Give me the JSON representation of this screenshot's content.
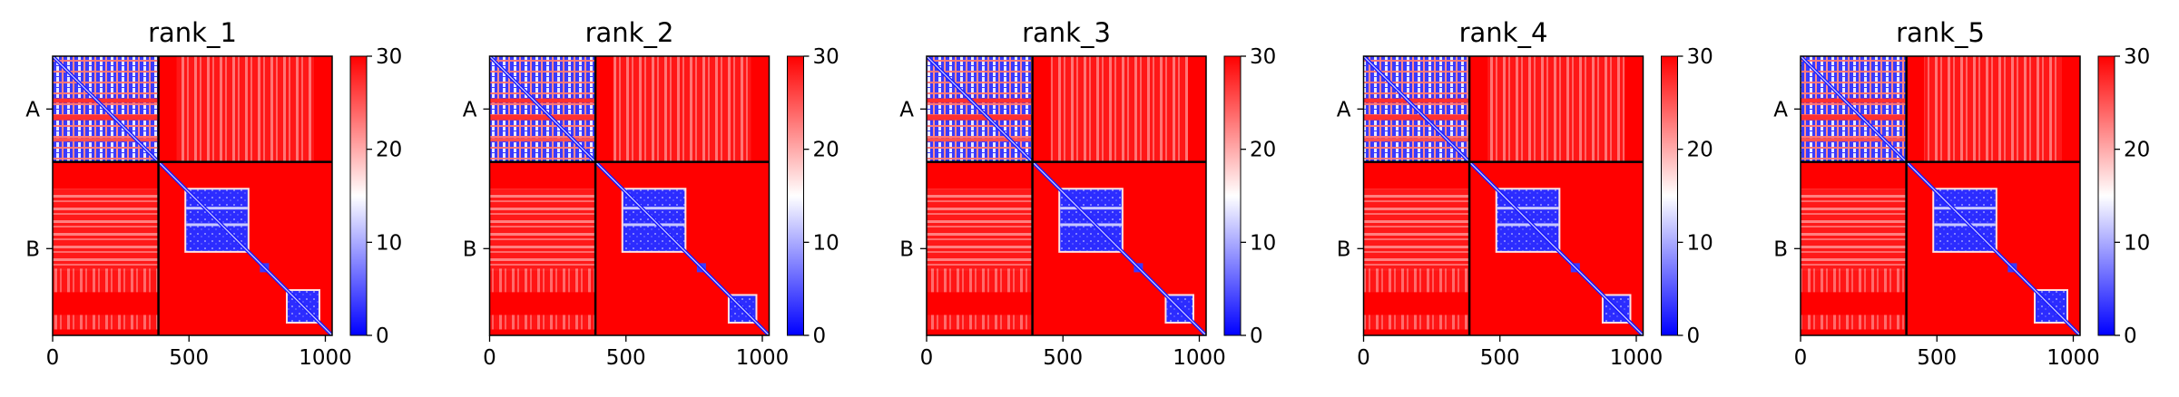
{
  "chart_data": [
    {
      "type": "heatmap",
      "title": "rank_1",
      "x_ticks": [
        0,
        500,
        1000
      ],
      "y_ticks": [
        "A",
        "B"
      ],
      "chain_boundary": 388,
      "n_residues": 1025,
      "colorbar": {
        "ticks": [
          0,
          10,
          20,
          30
        ],
        "range": [
          0,
          30
        ],
        "colormap": [
          "#0000ff",
          "#ffffff",
          "#ff0000"
        ]
      },
      "blocks": [
        {
          "range": [
            0,
            388
          ],
          "value": 12
        },
        {
          "range": [
            490,
            715
          ],
          "value": 4
        },
        {
          "range": [
            862,
            975
          ],
          "value": 3
        }
      ],
      "background_value": 30
    },
    {
      "type": "heatmap",
      "title": "rank_2",
      "x_ticks": [
        0,
        500,
        1000
      ],
      "y_ticks": [
        "A",
        "B"
      ],
      "chain_boundary": 388,
      "n_residues": 1025,
      "colorbar": {
        "ticks": [
          0,
          10,
          20,
          30
        ],
        "range": [
          0,
          30
        ],
        "colormap": [
          "#0000ff",
          "#ffffff",
          "#ff0000"
        ]
      },
      "blocks": [
        {
          "range": [
            0,
            388
          ],
          "value": 12
        },
        {
          "range": [
            490,
            715
          ],
          "value": 5
        },
        {
          "range": [
            880,
            975
          ],
          "value": 3
        }
      ],
      "background_value": 30
    },
    {
      "type": "heatmap",
      "title": "rank_3",
      "x_ticks": [
        0,
        500,
        1000
      ],
      "y_ticks": [
        "A",
        "B"
      ],
      "chain_boundary": 388,
      "n_residues": 1025,
      "colorbar": {
        "ticks": [
          0,
          10,
          20,
          30
        ],
        "range": [
          0,
          30
        ],
        "colormap": [
          "#0000ff",
          "#ffffff",
          "#ff0000"
        ]
      },
      "blocks": [
        {
          "range": [
            0,
            388
          ],
          "value": 12
        },
        {
          "range": [
            490,
            715
          ],
          "value": 5
        },
        {
          "range": [
            880,
            975
          ],
          "value": 3
        }
      ],
      "background_value": 30
    },
    {
      "type": "heatmap",
      "title": "rank_4",
      "x_ticks": [
        0,
        500,
        1000
      ],
      "y_ticks": [
        "A",
        "B"
      ],
      "chain_boundary": 388,
      "n_residues": 1025,
      "colorbar": {
        "ticks": [
          0,
          10,
          20,
          30
        ],
        "range": [
          0,
          30
        ],
        "colormap": [
          "#0000ff",
          "#ffffff",
          "#ff0000"
        ]
      },
      "blocks": [
        {
          "range": [
            0,
            388
          ],
          "value": 12
        },
        {
          "range": [
            490,
            715
          ],
          "value": 5
        },
        {
          "range": [
            880,
            975
          ],
          "value": 3
        }
      ],
      "background_value": 30
    },
    {
      "type": "heatmap",
      "title": "rank_5",
      "x_ticks": [
        0,
        500,
        1000
      ],
      "y_ticks": [
        "A",
        "B"
      ],
      "chain_boundary": 388,
      "n_residues": 1025,
      "colorbar": {
        "ticks": [
          0,
          10,
          20,
          30
        ],
        "range": [
          0,
          30
        ],
        "colormap": [
          "#0000ff",
          "#ffffff",
          "#ff0000"
        ]
      },
      "blocks": [
        {
          "range": [
            0,
            388
          ],
          "value": 12
        },
        {
          "range": [
            490,
            715
          ],
          "value": 4
        },
        {
          "range": [
            862,
            975
          ],
          "value": 3
        }
      ],
      "background_value": 30
    }
  ]
}
